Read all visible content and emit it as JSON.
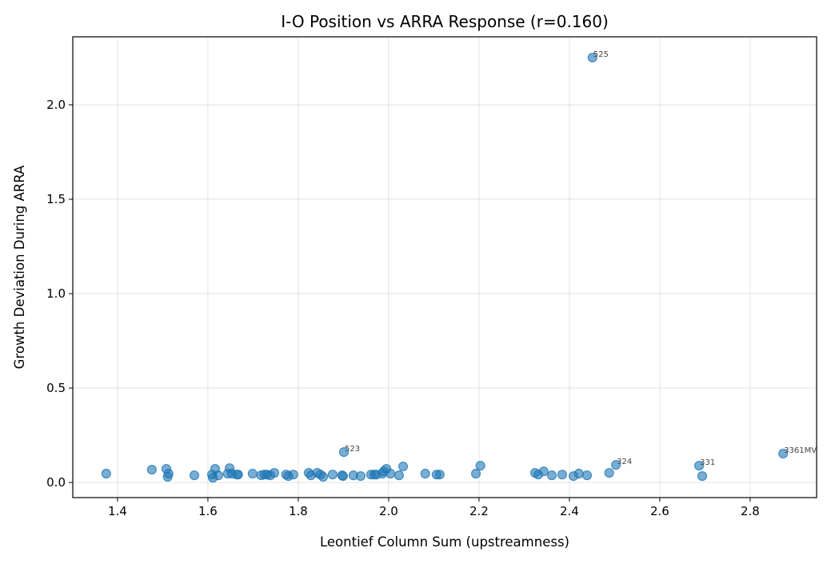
{
  "chart_data": {
    "type": "scatter",
    "title": "I-O Position vs ARRA Response (r=0.160)",
    "xlabel": "Leontief Column Sum (upstreamness)",
    "ylabel": "Growth Deviation During ARRA",
    "xlim": [
      1.301,
      2.947
    ],
    "ylim": [
      -0.08,
      2.36
    ],
    "xticks": [
      "1.4",
      "1.6",
      "1.8",
      "2.0",
      "2.2",
      "2.4",
      "2.6",
      "2.8"
    ],
    "yticks": [
      "0.0",
      "0.5",
      "1.0",
      "1.5",
      "2.0"
    ],
    "grid": true,
    "color": "#1f77b4",
    "points": [
      [
        1.375,
        0.047
      ],
      [
        1.476,
        0.068
      ],
      [
        1.508,
        0.072
      ],
      [
        1.511,
        0.03
      ],
      [
        1.513,
        0.047
      ],
      [
        1.57,
        0.038
      ],
      [
        1.609,
        0.042
      ],
      [
        1.611,
        0.025
      ],
      [
        1.616,
        0.072
      ],
      [
        1.623,
        0.038
      ],
      [
        1.644,
        0.047
      ],
      [
        1.648,
        0.076
      ],
      [
        1.653,
        0.047
      ],
      [
        1.664,
        0.042
      ],
      [
        1.667,
        0.042
      ],
      [
        1.699,
        0.047
      ],
      [
        1.718,
        0.038
      ],
      [
        1.725,
        0.042
      ],
      [
        1.731,
        0.042
      ],
      [
        1.738,
        0.038
      ],
      [
        1.747,
        0.051
      ],
      [
        1.773,
        0.042
      ],
      [
        1.778,
        0.034
      ],
      [
        1.789,
        0.042
      ],
      [
        1.823,
        0.051
      ],
      [
        1.828,
        0.038
      ],
      [
        1.842,
        0.051
      ],
      [
        1.849,
        0.042
      ],
      [
        1.855,
        0.03
      ],
      [
        1.876,
        0.042
      ],
      [
        1.897,
        0.038
      ],
      [
        1.899,
        0.034
      ],
      [
        1.901,
        0.161
      ],
      [
        1.922,
        0.038
      ],
      [
        1.938,
        0.034
      ],
      [
        1.961,
        0.042
      ],
      [
        1.968,
        0.042
      ],
      [
        1.973,
        0.042
      ],
      [
        1.986,
        0.047
      ],
      [
        1.989,
        0.059
      ],
      [
        1.995,
        0.072
      ],
      [
        2.004,
        0.047
      ],
      [
        2.023,
        0.038
      ],
      [
        2.032,
        0.085
      ],
      [
        2.081,
        0.047
      ],
      [
        2.106,
        0.042
      ],
      [
        2.113,
        0.042
      ],
      [
        2.193,
        0.047
      ],
      [
        2.203,
        0.089
      ],
      [
        2.324,
        0.051
      ],
      [
        2.331,
        0.042
      ],
      [
        2.343,
        0.059
      ],
      [
        2.361,
        0.038
      ],
      [
        2.384,
        0.042
      ],
      [
        2.409,
        0.034
      ],
      [
        2.421,
        0.047
      ],
      [
        2.439,
        0.038
      ],
      [
        2.451,
        2.25
      ],
      [
        2.488,
        0.051
      ],
      [
        2.503,
        0.093
      ],
      [
        2.687,
        0.089
      ],
      [
        2.694,
        0.034
      ],
      [
        2.873,
        0.153
      ]
    ],
    "annotations": [
      {
        "text": "525",
        "x": 2.451,
        "y": 2.25
      },
      {
        "text": "523",
        "x": 1.901,
        "y": 0.161
      },
      {
        "text": "324",
        "x": 2.503,
        "y": 0.093
      },
      {
        "text": "331",
        "x": 2.687,
        "y": 0.089
      },
      {
        "text": "3361MV",
        "x": 2.873,
        "y": 0.153
      }
    ]
  }
}
